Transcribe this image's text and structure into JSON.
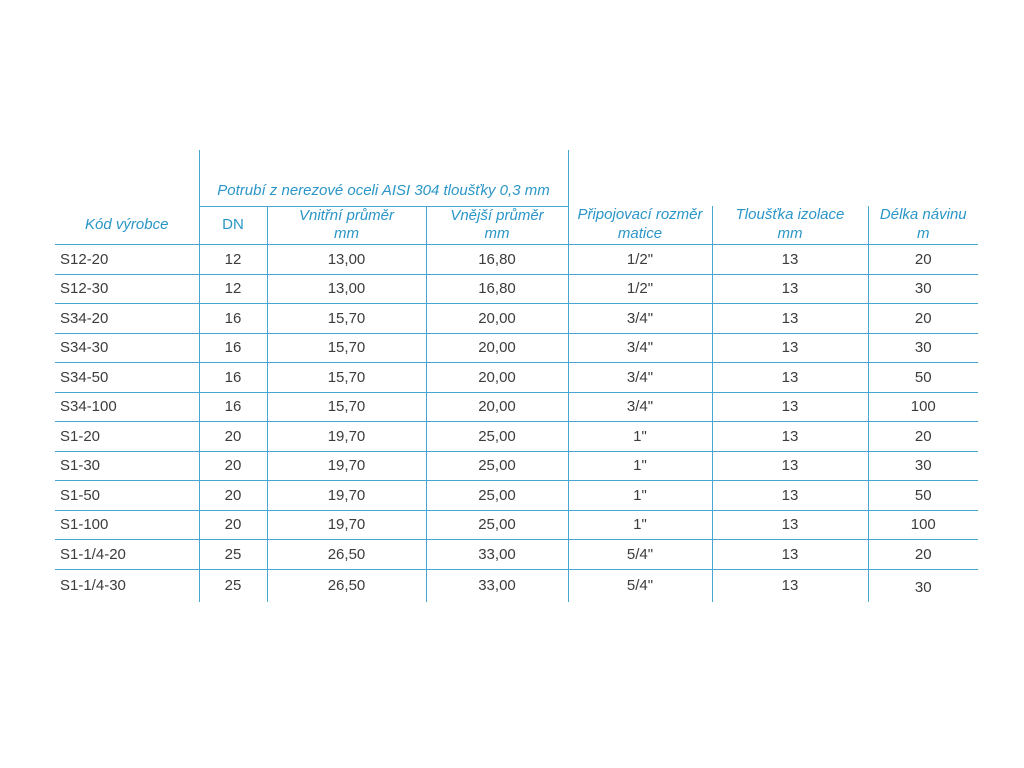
{
  "colors": {
    "accent_blue_text": "#2a96c8",
    "border_blue": "#45a6cf",
    "data_text": "#3c3c3c",
    "background": "#ffffff"
  },
  "table": {
    "group_header": "Potrubí z nerezové oceli AISI 304 tloušťky 0,3 mm",
    "columns": [
      {
        "label": "Kód výrobce",
        "sub": ""
      },
      {
        "label": "DN",
        "sub": ""
      },
      {
        "label": "Vnitřní průměr",
        "sub": "mm"
      },
      {
        "label": "Vnější průměr",
        "sub": "mm"
      },
      {
        "label": "Připojovací rozměr",
        "sub": "matice"
      },
      {
        "label": "Tloušťka izolace",
        "sub": "mm"
      },
      {
        "label": "Délka návinu",
        "sub": "m"
      }
    ],
    "rows": [
      [
        "S12-20",
        "12",
        "13,00",
        "16,80",
        "1/2\"",
        "13",
        "20"
      ],
      [
        "S12-30",
        "12",
        "13,00",
        "16,80",
        "1/2\"",
        "13",
        "30"
      ],
      [
        "S34-20",
        "16",
        "15,70",
        "20,00",
        "3/4\"",
        "13",
        "20"
      ],
      [
        "S34-30",
        "16",
        "15,70",
        "20,00",
        "3/4\"",
        "13",
        "30"
      ],
      [
        "S34-50",
        "16",
        "15,70",
        "20,00",
        "3/4\"",
        "13",
        "50"
      ],
      [
        "S34-100",
        "16",
        "15,70",
        "20,00",
        "3/4\"",
        "13",
        "100"
      ],
      [
        "S1-20",
        "20",
        "19,70",
        "25,00",
        "1\"",
        "13",
        "20"
      ],
      [
        "S1-30",
        "20",
        "19,70",
        "25,00",
        "1\"",
        "13",
        "30"
      ],
      [
        "S1-50",
        "20",
        "19,70",
        "25,00",
        "1\"",
        "13",
        "50"
      ],
      [
        "S1-100",
        "20",
        "19,70",
        "25,00",
        "1\"",
        "13",
        "100"
      ],
      [
        "S1-1/4-20",
        "25",
        "26,50",
        "33,00",
        "5/4\"",
        "13",
        "20"
      ],
      [
        "S1-1/4-30",
        "25",
        "26,50",
        "33,00",
        "5/4\"",
        "13",
        "30"
      ]
    ]
  }
}
